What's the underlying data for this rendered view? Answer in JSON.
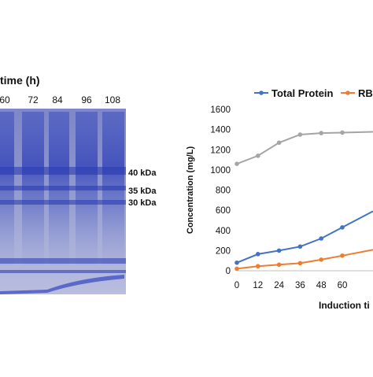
{
  "gel": {
    "title": "time (h)",
    "lanes": [
      "60",
      "72",
      "84",
      "96",
      "108"
    ],
    "markers": [
      "40 kDa",
      "35 kDa",
      "30 kDa"
    ],
    "stain_color": "#3b4cc0"
  },
  "chart_data": {
    "type": "line",
    "title": "",
    "xlabel": "Induction ti",
    "ylabel": "Concentration (mg/L)",
    "x": [
      0,
      12,
      24,
      36,
      48,
      60
    ],
    "x_ticks": [
      "0",
      "12",
      "24",
      "36",
      "48",
      "60"
    ],
    "ylim": [
      0,
      1600
    ],
    "y_ticks": [
      "0",
      "200",
      "400",
      "600",
      "800",
      "1000",
      "1200",
      "1400",
      "1600"
    ],
    "grid": false,
    "legend_position": "top",
    "series": [
      {
        "name": "",
        "color": "#a5a5a5",
        "values": [
          1060,
          1140,
          1270,
          1350,
          1365,
          1370
        ],
        "extends_right": true
      },
      {
        "name": "Total Protein",
        "color": "#4472c4",
        "values": [
          80,
          165,
          200,
          240,
          320,
          430
        ],
        "extends_right": true
      },
      {
        "name": "RB",
        "color": "#ed7d31",
        "values": [
          20,
          45,
          60,
          75,
          110,
          150
        ],
        "extends_right": true
      }
    ]
  }
}
